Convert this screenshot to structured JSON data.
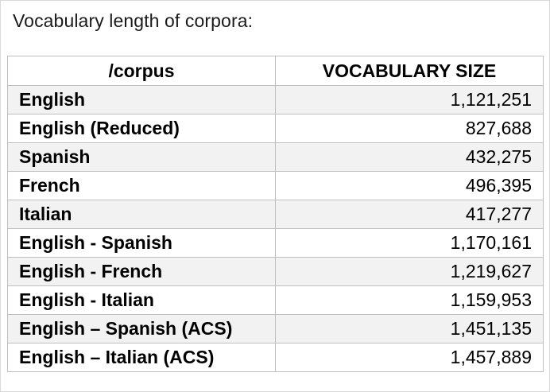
{
  "caption": "Vocabulary length of corpora:",
  "table": {
    "headers": [
      "/corpus",
      "VOCABULARY SIZE"
    ],
    "rows": [
      {
        "corpus": "English",
        "size": "1,121,251"
      },
      {
        "corpus": "English (Reduced)",
        "size": "827,688"
      },
      {
        "corpus": "Spanish",
        "size": "432,275"
      },
      {
        "corpus": "French",
        "size": "496,395"
      },
      {
        "corpus": "Italian",
        "size": "417,277"
      },
      {
        "corpus": "English - Spanish",
        "size": "1,170,161"
      },
      {
        "corpus": "English - French",
        "size": "1,219,627"
      },
      {
        "corpus": "English - Italian",
        "size": "1,159,953"
      },
      {
        "corpus": "English – Spanish (ACS)",
        "size": "1,451,135"
      },
      {
        "corpus": "English – Italian (ACS)",
        "size": "1,457,889"
      }
    ]
  },
  "colors": {
    "stripe": "#f2f2f2",
    "border": "#bfbfbf",
    "text": "#000000"
  }
}
